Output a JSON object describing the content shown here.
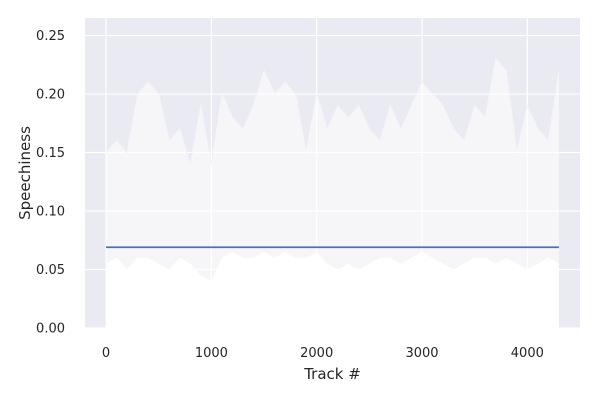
{
  "chart_data": {
    "type": "area",
    "title": "",
    "xlabel": "Track #",
    "ylabel": "Speechiness",
    "xlim": [
      -200,
      4500
    ],
    "ylim": [
      0,
      0.265
    ],
    "xticks": [
      0,
      1000,
      2000,
      3000,
      4000
    ],
    "xtick_labels": [
      "0",
      "1000",
      "2000",
      "3000",
      "4000"
    ],
    "yticks": [
      0,
      0.05,
      0.1,
      0.15,
      0.2,
      0.25
    ],
    "ytick_labels": [
      "0.00",
      "0.05",
      "0.10",
      "0.15",
      "0.20",
      "0.25"
    ],
    "grid": true,
    "legend": "none",
    "background": "#eaeaf2",
    "series": [
      {
        "kind": "band",
        "color": "#ffffff",
        "x": [
          0,
          100,
          200,
          300,
          400,
          500,
          600,
          700,
          800,
          900,
          1000,
          1100,
          1200,
          1300,
          1400,
          1500,
          1600,
          1700,
          1800,
          1900,
          2000,
          2100,
          2200,
          2300,
          2400,
          2500,
          2600,
          2700,
          2800,
          2900,
          3000,
          3100,
          3200,
          3300,
          3400,
          3500,
          3600,
          3700,
          3800,
          3900,
          4000,
          4100,
          4200,
          4300
        ],
        "upper": [
          0.15,
          0.16,
          0.15,
          0.2,
          0.21,
          0.2,
          0.16,
          0.17,
          0.14,
          0.19,
          0.14,
          0.2,
          0.18,
          0.17,
          0.19,
          0.22,
          0.2,
          0.21,
          0.2,
          0.15,
          0.2,
          0.17,
          0.19,
          0.18,
          0.19,
          0.17,
          0.16,
          0.19,
          0.17,
          0.19,
          0.21,
          0.2,
          0.19,
          0.17,
          0.16,
          0.19,
          0.18,
          0.23,
          0.22,
          0.15,
          0.19,
          0.17,
          0.16,
          0.22
        ],
        "lower": [
          0.055,
          0.06,
          0.05,
          0.06,
          0.06,
          0.055,
          0.05,
          0.06,
          0.055,
          0.045,
          0.04,
          0.06,
          0.065,
          0.06,
          0.06,
          0.065,
          0.06,
          0.065,
          0.06,
          0.06,
          0.065,
          0.055,
          0.05,
          0.055,
          0.05,
          0.055,
          0.06,
          0.06,
          0.055,
          0.06,
          0.065,
          0.06,
          0.055,
          0.05,
          0.055,
          0.06,
          0.06,
          0.055,
          0.06,
          0.055,
          0.05,
          0.055,
          0.06,
          0.055
        ]
      },
      {
        "kind": "line",
        "color": "#4c72b0",
        "x": [
          0,
          4300
        ],
        "values": [
          0.069,
          0.069
        ]
      }
    ]
  }
}
